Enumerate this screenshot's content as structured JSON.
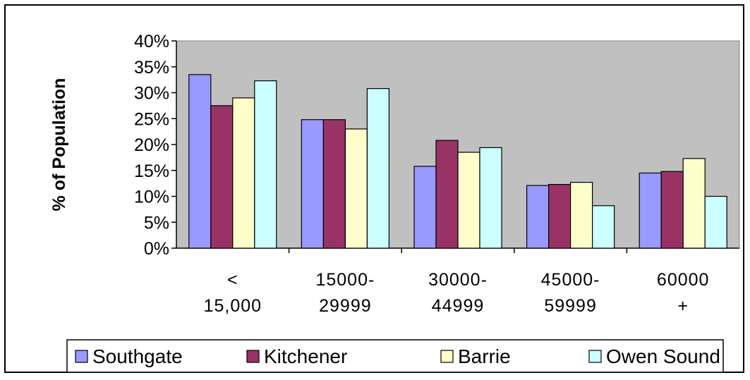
{
  "chart_data": {
    "type": "bar",
    "title": "",
    "xlabel": "",
    "ylabel": "% of Population",
    "ylim": [
      0,
      40
    ],
    "ytick_step": 5,
    "ytick_suffix": "%",
    "grid": "none",
    "legend_position": "bottom",
    "plot_background": "#c0c0c0",
    "categories": [
      [
        "<",
        "15,000"
      ],
      [
        "15000-",
        "29999"
      ],
      [
        "30000-",
        "44999"
      ],
      [
        "45000-",
        "59999"
      ],
      [
        "60000",
        "+"
      ]
    ],
    "series": [
      {
        "name": "Southgate",
        "color": "#9999ff",
        "values": [
          33.5,
          24.8,
          15.8,
          12.1,
          14.5
        ]
      },
      {
        "name": "Kitchener",
        "color": "#993366",
        "values": [
          27.5,
          24.8,
          20.8,
          12.3,
          14.8
        ]
      },
      {
        "name": "Barrie",
        "color": "#ffffcc",
        "values": [
          29.0,
          23.0,
          18.5,
          12.7,
          17.3
        ]
      },
      {
        "name": "Owen Sound",
        "color": "#ccffff",
        "values": [
          32.3,
          30.8,
          19.4,
          8.2,
          10.0
        ]
      }
    ]
  }
}
